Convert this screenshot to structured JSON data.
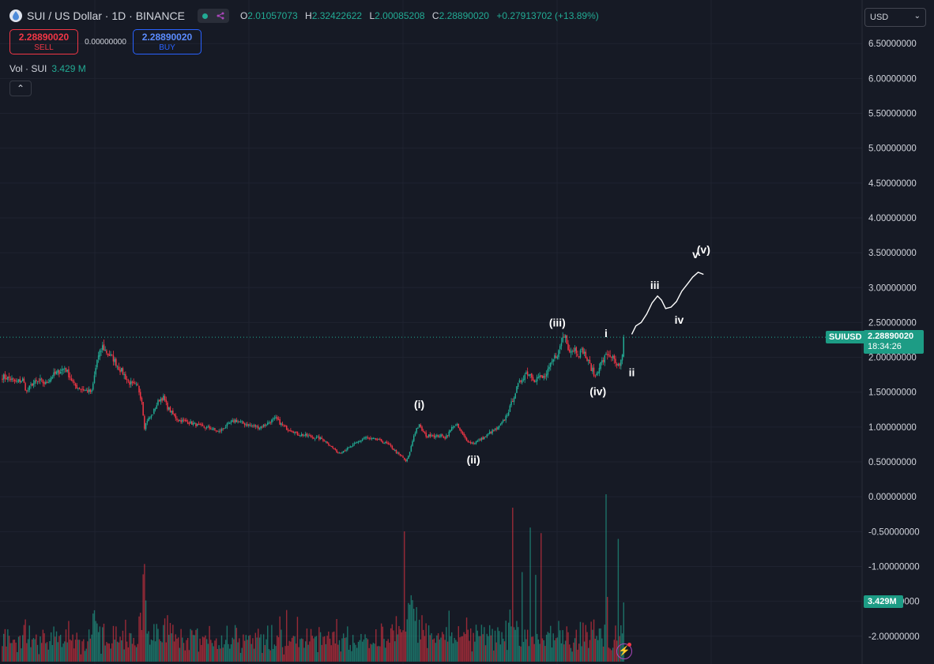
{
  "header": {
    "title": "SUI / US Dollar · 1D · BINANCE",
    "ohlc": [
      {
        "k": "O",
        "v": "2.01057073"
      },
      {
        "k": "H",
        "v": "2.32422622"
      },
      {
        "k": "L",
        "v": "2.00085208"
      },
      {
        "k": "C",
        "v": "2.28890020"
      }
    ],
    "change": "+0.27913702 (+13.89%)",
    "logo_icon": "sui-drop-icon",
    "status_icons": [
      "market-open-dot-icon",
      "share-icon"
    ]
  },
  "trade": {
    "sell_price": "2.28890020",
    "sell_label": "SELL",
    "spread": "0.00000000",
    "buy_price": "2.28890020",
    "buy_label": "BUY"
  },
  "volume": {
    "label": "Vol · SUI",
    "value": "3.429 M"
  },
  "collapse_icon": "chevron-up-icon",
  "currency": {
    "label": "USD",
    "icon": "chevron-down-icon"
  },
  "tags": {
    "symbol": "SUIUSD",
    "price": "2.28890020",
    "countdown": "18:34:26",
    "volume": "3.429M"
  },
  "colors": {
    "up": "#22ab94",
    "down": "#f23645",
    "background": "#161a25",
    "grid": "#1f2330",
    "text": "#d1d4dc",
    "price_line": "#22ab94"
  },
  "chart_data": {
    "type": "candlestick",
    "title": "SUI / US Dollar · 1D · BINANCE",
    "xlabel": "",
    "ylabel": "",
    "y_ticks": [
      "6.50000000",
      "6.00000000",
      "5.50000000",
      "5.00000000",
      "4.50000000",
      "4.00000000",
      "3.50000000",
      "3.00000000",
      "2.50000000",
      "2.00000000",
      "1.50000000",
      "1.00000000",
      "0.50000000",
      "0.00000000",
      "-0.50000000",
      "-1.00000000",
      "-1.50000000",
      "-2.00000000"
    ],
    "ylim": [
      -2.2,
      6.7
    ],
    "grid": true,
    "current_price": 2.2889,
    "price_anchors": [
      [
        0,
        1.72
      ],
      [
        5,
        1.7
      ],
      [
        10,
        1.64
      ],
      [
        15,
        1.68
      ],
      [
        18,
        1.5
      ],
      [
        22,
        1.62
      ],
      [
        28,
        1.66
      ],
      [
        32,
        1.62
      ],
      [
        36,
        1.72
      ],
      [
        42,
        1.8
      ],
      [
        46,
        1.85
      ],
      [
        50,
        1.72
      ],
      [
        53,
        1.6
      ],
      [
        58,
        1.55
      ],
      [
        66,
        1.5
      ],
      [
        70,
        1.96
      ],
      [
        74,
        2.15
      ],
      [
        78,
        2.05
      ],
      [
        82,
        1.98
      ],
      [
        86,
        1.85
      ],
      [
        89,
        1.78
      ],
      [
        93,
        1.65
      ],
      [
        97,
        1.6
      ],
      [
        100,
        1.58
      ],
      [
        103,
        1.38
      ],
      [
        105,
        1.0
      ],
      [
        107,
        1.1
      ],
      [
        110,
        1.15
      ],
      [
        113,
        1.28
      ],
      [
        116,
        1.4
      ],
      [
        119,
        1.42
      ],
      [
        122,
        1.28
      ],
      [
        126,
        1.18
      ],
      [
        130,
        1.1
      ],
      [
        136,
        1.08
      ],
      [
        142,
        1.04
      ],
      [
        148,
        1.0
      ],
      [
        154,
        0.98
      ],
      [
        160,
        0.93
      ],
      [
        164,
        1.0
      ],
      [
        168,
        1.05
      ],
      [
        172,
        1.1
      ],
      [
        178,
        1.05
      ],
      [
        184,
        1.02
      ],
      [
        190,
        1.0
      ],
      [
        194,
        1.03
      ],
      [
        198,
        1.08
      ],
      [
        202,
        1.12
      ],
      [
        206,
        1.04
      ],
      [
        210,
        0.98
      ],
      [
        214,
        0.95
      ],
      [
        218,
        0.9
      ],
      [
        224,
        0.88
      ],
      [
        230,
        0.85
      ],
      [
        236,
        0.83
      ],
      [
        240,
        0.78
      ],
      [
        244,
        0.7
      ],
      [
        248,
        0.63
      ],
      [
        252,
        0.66
      ],
      [
        256,
        0.7
      ],
      [
        260,
        0.75
      ],
      [
        264,
        0.8
      ],
      [
        268,
        0.85
      ],
      [
        272,
        0.83
      ],
      [
        276,
        0.82
      ],
      [
        280,
        0.8
      ],
      [
        284,
        0.76
      ],
      [
        288,
        0.7
      ],
      [
        292,
        0.62
      ],
      [
        296,
        0.56
      ],
      [
        298,
        0.5
      ],
      [
        300,
        0.58
      ],
      [
        302,
        0.72
      ],
      [
        304,
        0.88
      ],
      [
        306,
        0.98
      ],
      [
        308,
        1.02
      ],
      [
        311,
        0.92
      ],
      [
        314,
        0.86
      ],
      [
        317,
        0.9
      ],
      [
        320,
        0.86
      ],
      [
        323,
        0.88
      ],
      [
        327,
        0.85
      ],
      [
        330,
        0.92
      ],
      [
        333,
        1.02
      ],
      [
        336,
        1.02
      ],
      [
        339,
        0.92
      ],
      [
        342,
        0.84
      ],
      [
        345,
        0.78
      ],
      [
        348,
        0.77
      ],
      [
        351,
        0.8
      ],
      [
        354,
        0.83
      ],
      [
        357,
        0.86
      ],
      [
        360,
        0.92
      ],
      [
        363,
        0.95
      ],
      [
        366,
        0.98
      ],
      [
        369,
        1.05
      ],
      [
        372,
        1.15
      ],
      [
        375,
        1.28
      ],
      [
        378,
        1.45
      ],
      [
        381,
        1.6
      ],
      [
        384,
        1.7
      ],
      [
        387,
        1.78
      ],
      [
        390,
        1.76
      ],
      [
        393,
        1.68
      ],
      [
        396,
        1.72
      ],
      [
        399,
        1.7
      ],
      [
        402,
        1.75
      ],
      [
        405,
        1.88
      ],
      [
        408,
        2.0
      ],
      [
        411,
        2.08
      ],
      [
        414,
        2.28
      ],
      [
        416,
        2.32
      ],
      [
        418,
        2.15
      ],
      [
        420,
        2.1
      ],
      [
        423,
        2.12
      ],
      [
        426,
        2.05
      ],
      [
        429,
        2.1
      ],
      [
        432,
        1.96
      ],
      [
        435,
        1.85
      ],
      [
        438,
        1.72
      ],
      [
        441,
        1.88
      ],
      [
        444,
        1.96
      ],
      [
        447,
        2.05
      ],
      [
        450,
        2.02
      ],
      [
        453,
        1.9
      ],
      [
        456,
        1.85
      ],
      [
        458,
        2.01
      ],
      [
        459,
        2.2889
      ]
    ],
    "candle_count": 460,
    "volume_axis_label": "3.429M",
    "wave_labels": [
      {
        "text": "(i)",
        "x": 308,
        "y": 1.27
      },
      {
        "text": "(ii)",
        "x": 348,
        "y": 0.48
      },
      {
        "text": "(iii)",
        "x": 410,
        "y": 2.44
      },
      {
        "text": "(iv)",
        "x": 440,
        "y": 1.46
      },
      {
        "text": "i",
        "x": 446,
        "y": 2.29
      },
      {
        "text": "ii",
        "x": 465,
        "y": 1.73
      },
      {
        "text": "iii",
        "x": 482,
        "y": 2.98
      },
      {
        "text": "iv",
        "x": 500,
        "y": 2.48
      },
      {
        "text": "v",
        "x": 512,
        "y": 3.42
      },
      {
        "text": "(v)",
        "x": 518,
        "y": 3.49
      }
    ],
    "projection_path": [
      [
        465,
        2.33
      ],
      [
        468,
        2.45
      ],
      [
        472,
        2.5
      ],
      [
        476,
        2.62
      ],
      [
        480,
        2.78
      ],
      [
        484,
        2.88
      ],
      [
        487,
        2.82
      ],
      [
        490,
        2.7
      ],
      [
        494,
        2.72
      ],
      [
        498,
        2.8
      ],
      [
        502,
        2.95
      ],
      [
        506,
        3.05
      ],
      [
        510,
        3.15
      ],
      [
        514,
        3.22
      ],
      [
        518,
        3.19
      ]
    ]
  }
}
